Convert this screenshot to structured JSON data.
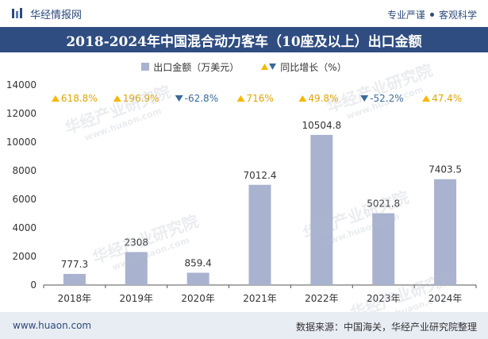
{
  "header": {
    "brand": "华经情报网",
    "tagline_left": "专业严谨",
    "tagline_right": "客观科学"
  },
  "title": "2018-2024年中国混合动力客车（10座及以上）出口金额",
  "legend": {
    "bar_label": "出口金额（万美元）",
    "growth_label": "同比增长（%）"
  },
  "colors": {
    "bar": "#a9b3cf",
    "up": "#f5b800",
    "down": "#3a6a9a",
    "title_bg": "#2f4d80",
    "footer_bg": "#e8ecf3"
  },
  "chart_data": {
    "type": "bar",
    "categories": [
      "2018年",
      "2019年",
      "2020年",
      "2021年",
      "2022年",
      "2023年",
      "2024年"
    ],
    "series": [
      {
        "name": "出口金额（万美元）",
        "values": [
          777.3,
          2308,
          859.4,
          7012.4,
          10504.8,
          5021.8,
          7403.5
        ]
      }
    ],
    "value_labels": [
      "777.3",
      "2308",
      "859.4",
      "7012.4",
      "10504.8",
      "5021.8",
      "7403.5"
    ],
    "growth": {
      "name": "同比增长（%）",
      "labels": [
        "618.8%",
        "196.9%",
        "-62.8%",
        "716%",
        "49.8%",
        "-52.2%",
        "47.4%"
      ],
      "direction": [
        "up",
        "up",
        "down",
        "up",
        "up",
        "down",
        "up"
      ]
    },
    "ylim": [
      0,
      14000
    ],
    "yticks": [
      "0",
      "2000",
      "4000",
      "6000",
      "8000",
      "10000",
      "12000",
      "14000"
    ],
    "ytick_values": [
      0,
      2000,
      4000,
      6000,
      8000,
      10000,
      12000,
      14000
    ],
    "grid": false,
    "legend_position": "top"
  },
  "watermark": {
    "text": "华经产业研究院",
    "url": "www.huaon.com"
  },
  "footer": {
    "website": "www.huaon.com",
    "source": "数据来源：中国海关，华经产业研究院整理"
  }
}
